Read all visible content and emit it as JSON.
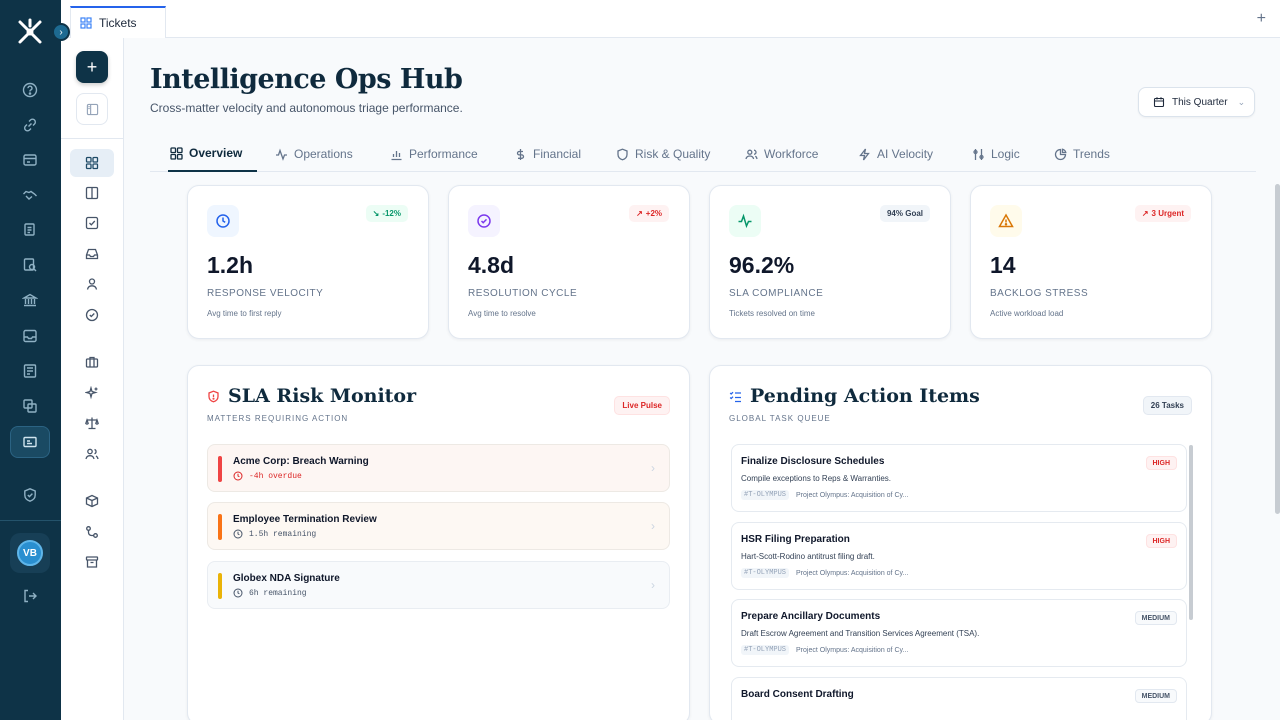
{
  "topbar": {
    "tab_label": "Tickets"
  },
  "header": {
    "title": "Intelligence Ops Hub",
    "subtitle": "Cross-matter velocity and autonomous triage performance.",
    "period": "This Quarter"
  },
  "user": {
    "initials": "VB"
  },
  "nav_tabs": [
    "Overview",
    "Operations",
    "Performance",
    "Financial",
    "Risk & Quality",
    "Workforce",
    "AI Velocity",
    "Logic",
    "Trends"
  ],
  "kpis": [
    {
      "value": "1.2h",
      "label": "RESPONSE VELOCITY",
      "sub": "Avg time to first reply",
      "badge": "-12%",
      "icon": "clock-icon",
      "color": "#2563eb"
    },
    {
      "value": "4.8d",
      "label": "RESOLUTION CYCLE",
      "sub": "Avg time to resolve",
      "badge": "+2%",
      "icon": "check-circle-icon",
      "color": "#7c3aed"
    },
    {
      "value": "96.2%",
      "label": "SLA COMPLIANCE",
      "sub": "Tickets resolved on time",
      "badge": "94% Goal",
      "icon": "activity-icon",
      "color": "#059669"
    },
    {
      "value": "14",
      "label": "BACKLOG STRESS",
      "sub": "Active workload load",
      "badge": "3 Urgent",
      "icon": "warning-icon",
      "color": "#d97706"
    }
  ],
  "sla_panel": {
    "title": "SLA Risk Monitor",
    "subtitle": "MATTERS REQUIRING ACTION",
    "badge": "Live Pulse",
    "items": [
      {
        "name": "Acme Corp: Breach Warning",
        "time": "-4h overdue",
        "color": "#ef4444"
      },
      {
        "name": "Employee Termination Review",
        "time": "1.5h remaining",
        "color": "#f97316"
      },
      {
        "name": "Globex NDA Signature",
        "time": "6h remaining",
        "color": "#eab308"
      }
    ]
  },
  "tasks_panel": {
    "title": "Pending Action Items",
    "subtitle": "GLOBAL TASK QUEUE",
    "badge": "26 Tasks",
    "items": [
      {
        "name": "Finalize Disclosure Schedules",
        "desc": "Compile exceptions to Reps & Warranties.",
        "code": "#T-OLYMPUS",
        "project": "Project Olympus: Acquisition of Cy...",
        "priority": "HIGH"
      },
      {
        "name": "HSR Filing Preparation",
        "desc": "Hart-Scott-Rodino antitrust filing draft.",
        "code": "#T-OLYMPUS",
        "project": "Project Olympus: Acquisition of Cy...",
        "priority": "HIGH"
      },
      {
        "name": "Prepare Ancillary Documents",
        "desc": "Draft Escrow Agreement and Transition Services Agreement (TSA).",
        "code": "#T-OLYMPUS",
        "project": "Project Olympus: Acquisition of Cy...",
        "priority": "MEDIUM"
      },
      {
        "name": "Board Consent Drafting",
        "desc": "",
        "code": "",
        "project": "",
        "priority": "MEDIUM"
      }
    ]
  }
}
